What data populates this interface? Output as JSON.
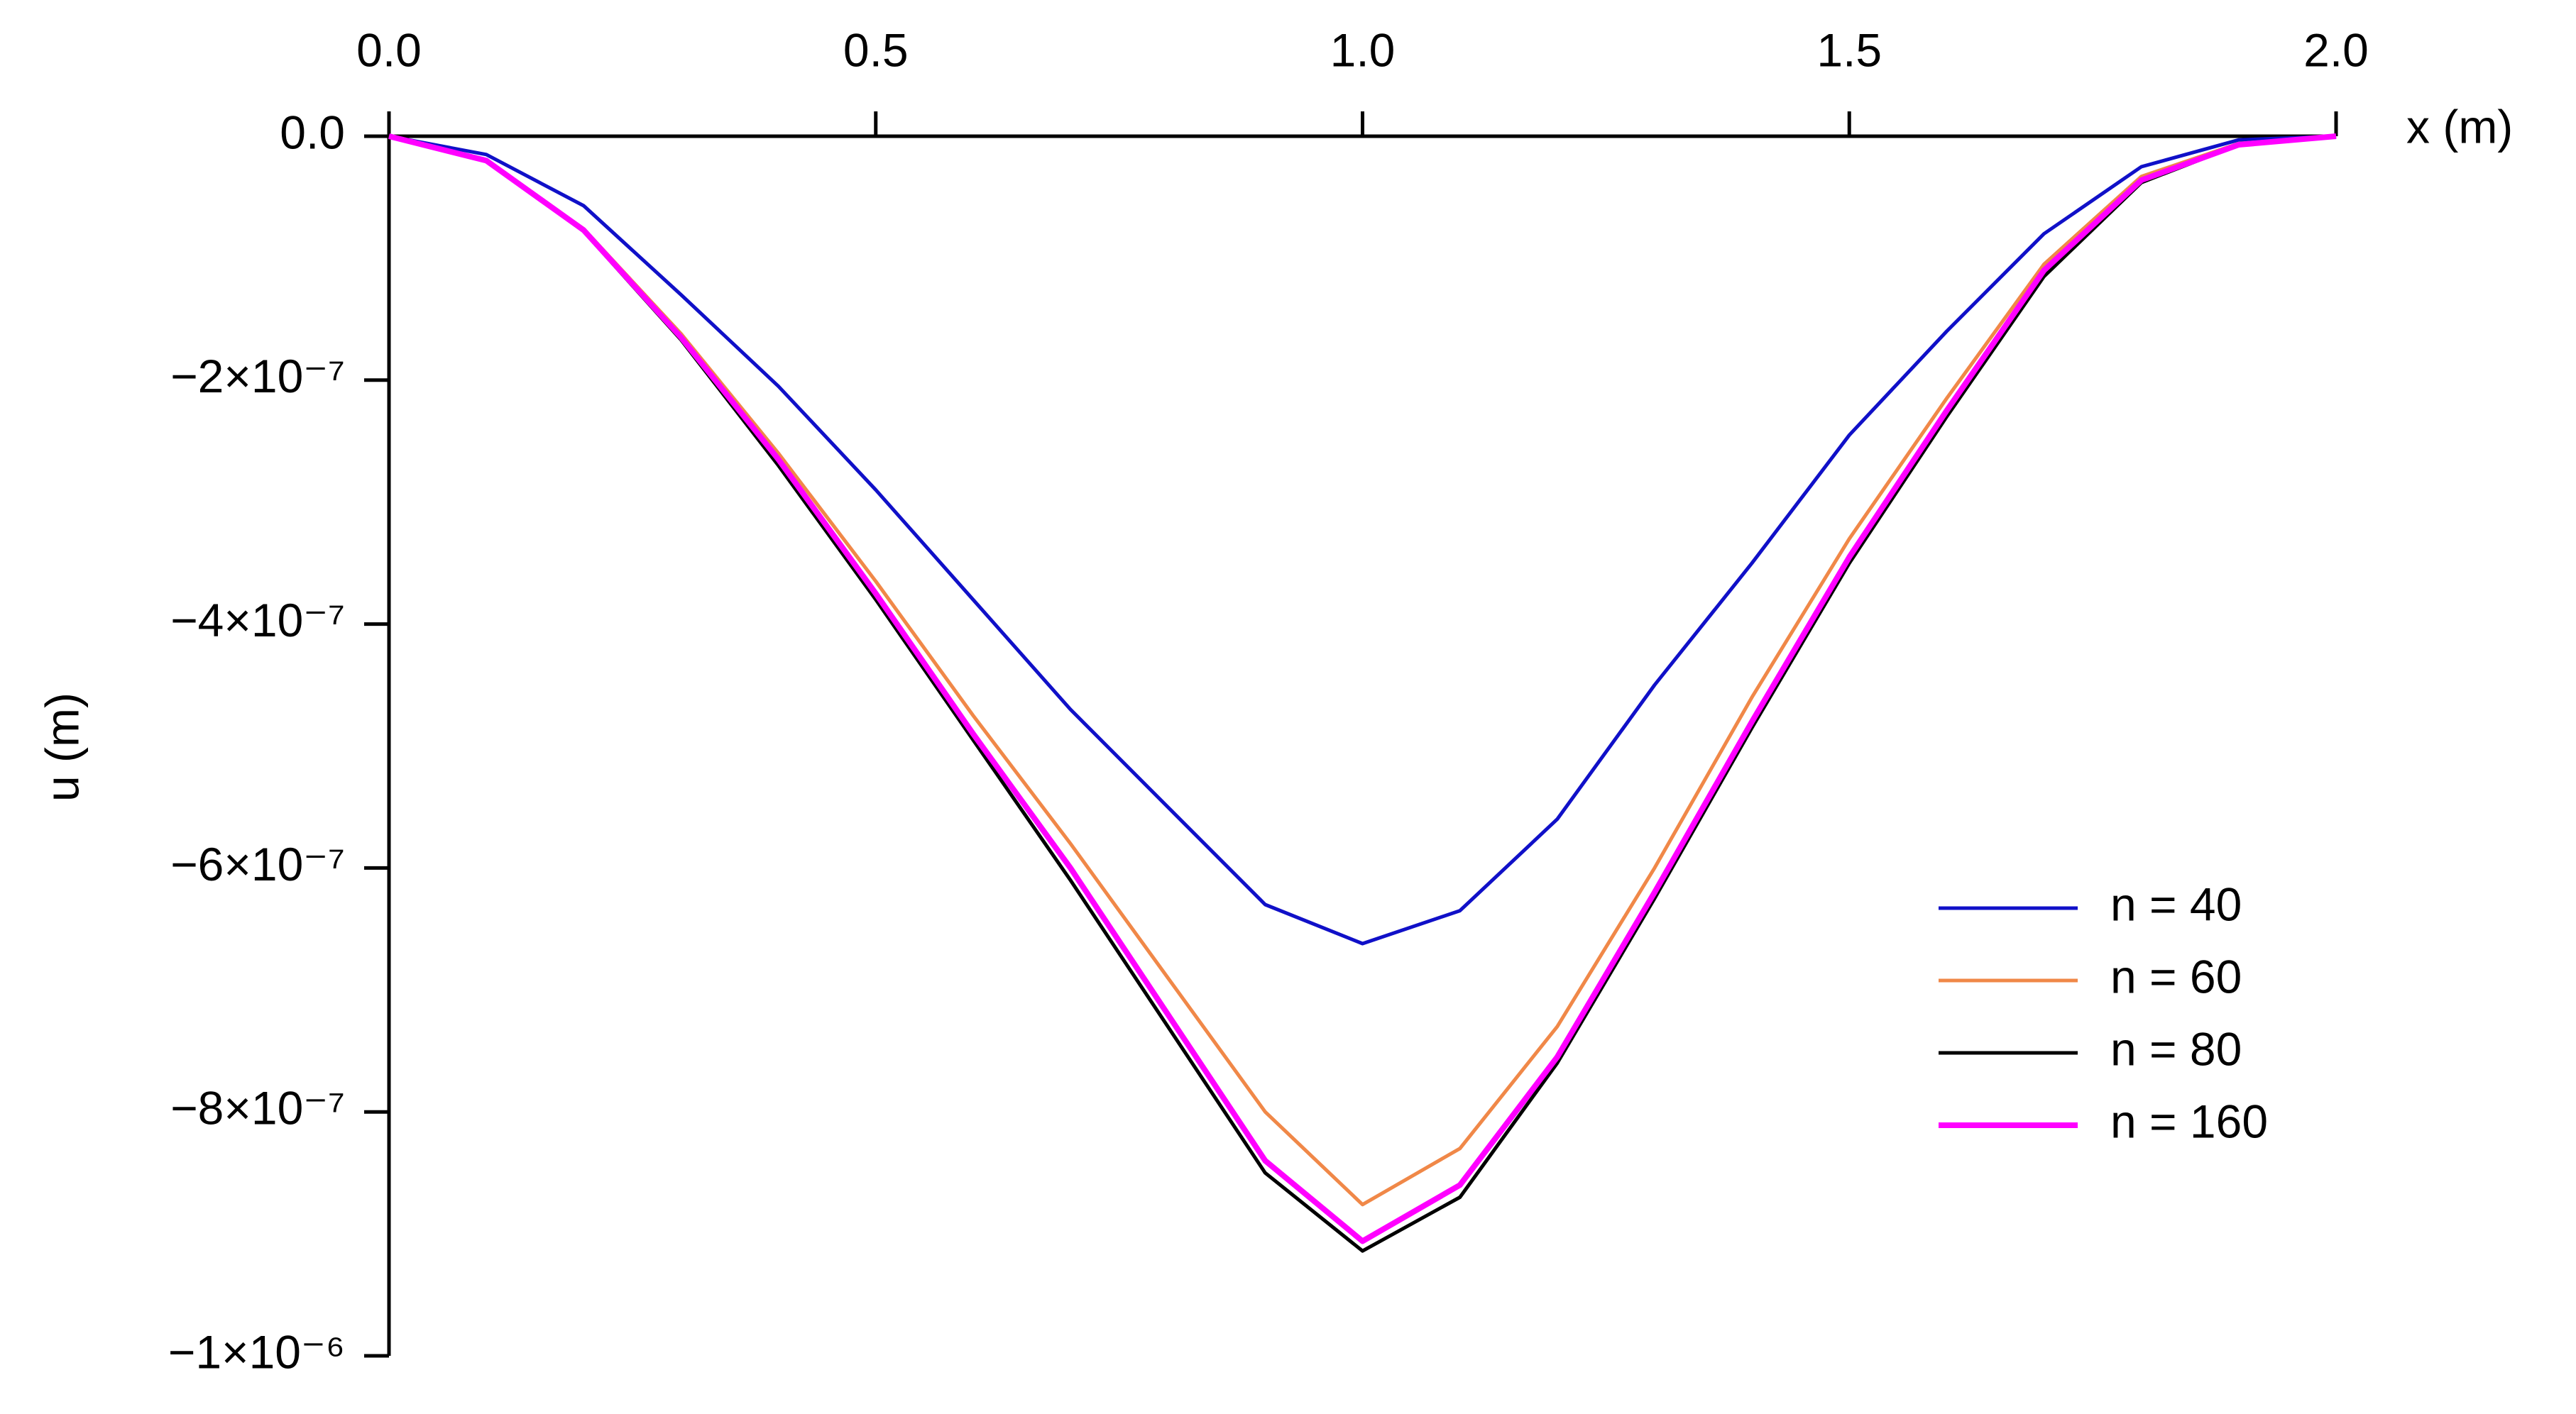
{
  "chart_data": {
    "type": "line",
    "xlabel": "x (m)",
    "ylabel": "u (m)",
    "x": [
      0,
      0.1,
      0.2,
      0.3,
      0.4,
      0.5,
      0.6,
      0.7,
      0.8,
      0.9,
      1.0,
      1.1,
      1.2,
      1.3,
      1.4,
      1.5,
      1.6,
      1.7,
      1.8,
      1.9,
      2.0
    ],
    "xlim": [
      0,
      2
    ],
    "xticks": [
      {
        "value": 0,
        "label": "0.0"
      },
      0.5,
      {
        "value": 1,
        "label": "1.0"
      },
      1.5,
      {
        "value": 2,
        "label": "2.0"
      }
    ],
    "ylim": [
      -1e-06,
      0
    ],
    "yticks": [
      {
        "value": 0,
        "label": "0.0"
      },
      {
        "value": -2e-07,
        "label": "−2×10⁻⁷"
      },
      {
        "value": -4e-07,
        "label": "−4×10⁻⁷"
      },
      {
        "value": -6e-07,
        "label": "−6×10⁻⁷"
      },
      {
        "value": -8e-07,
        "label": "−8×10⁻⁷"
      },
      {
        "value": -1e-06,
        "label": "−1×10⁻⁶"
      }
    ],
    "legend": "lower right",
    "series": [
      {
        "name": "n = 40",
        "color": "#1010c8",
        "values": [
          0,
          -1.5e-08,
          -5.7e-08,
          -1.3e-07,
          -2.05e-07,
          -2.9e-07,
          -3.8e-07,
          -4.7e-07,
          -5.5e-07,
          -6.3e-07,
          -6.62e-07,
          -6.35e-07,
          -5.6e-07,
          -4.5e-07,
          -3.5e-07,
          -2.45e-07,
          -1.6e-07,
          -8e-08,
          -2.5e-08,
          -3e-09,
          0
        ]
      },
      {
        "name": "n = 60",
        "color": "#f08848",
        "values": [
          0,
          -2e-08,
          -7.6e-08,
          -1.62e-07,
          -2.6e-07,
          -3.65e-07,
          -4.75e-07,
          -5.8e-07,
          -6.9e-07,
          -8e-07,
          -8.76e-07,
          -8.3e-07,
          -7.3e-07,
          -6e-07,
          -4.6e-07,
          -3.3e-07,
          -2.15e-07,
          -1.05e-07,
          -3.3e-08,
          -6e-09,
          0
        ]
      },
      {
        "name": "n = 80",
        "color": "#000000",
        "values": [
          0,
          -2e-08,
          -7.8e-08,
          -1.67e-07,
          -2.7e-07,
          -3.8e-07,
          -4.95e-07,
          -6.1e-07,
          -7.3e-07,
          -8.5e-07,
          -9.14e-07,
          -8.7e-07,
          -7.6e-07,
          -6.25e-07,
          -4.85e-07,
          -3.5e-07,
          -2.3e-07,
          -1.15e-07,
          -3.8e-08,
          -7e-09,
          0
        ]
      },
      {
        "name": "n = 160",
        "color": "#ff00ff",
        "values": [
          0,
          -2e-08,
          -7.7e-08,
          -1.65e-07,
          -2.65e-07,
          -3.75e-07,
          -4.9e-07,
          -6e-07,
          -7.2e-07,
          -8.4e-07,
          -9.06e-07,
          -8.6e-07,
          -7.55e-07,
          -6.2e-07,
          -4.8e-07,
          -3.45e-07,
          -2.25e-07,
          -1.1e-07,
          -3.6e-08,
          -7e-09,
          0
        ]
      }
    ]
  }
}
